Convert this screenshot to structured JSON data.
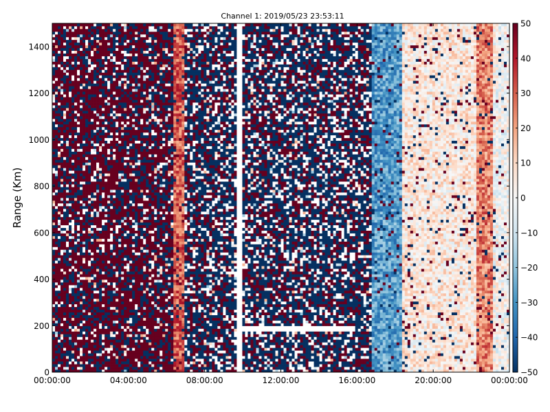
{
  "chart_data": {
    "type": "heatmap",
    "title": "Channel 1: 2019/05/23 23:53:11",
    "xlabel": "",
    "ylabel": "Range (Km)",
    "x_tick_labels": [
      "00:00:00",
      "04:00:00",
      "08:00:00",
      "12:00:00",
      "16:00:00",
      "20:00:00",
      "00:00:00"
    ],
    "x_tick_hours": [
      0,
      4,
      8,
      12,
      16,
      20,
      24
    ],
    "xlim_hours": [
      0,
      24
    ],
    "ylim": [
      0,
      1500
    ],
    "y_ticks": [
      0,
      200,
      400,
      600,
      800,
      1000,
      1200,
      1400
    ],
    "colorbar": {
      "min": -50,
      "max": 50,
      "ticks": [
        -50,
        -40,
        -30,
        -20,
        -10,
        0,
        10,
        20,
        30,
        40,
        50
      ],
      "colormap": "RdBu_r",
      "colors": [
        "#053061",
        "#2166ac",
        "#4393c3",
        "#92c5de",
        "#d1e5f0",
        "#f7f7f7",
        "#fddbc7",
        "#f4a582",
        "#d6604d",
        "#b2182b",
        "#67001f"
      ]
    },
    "grid": false,
    "time_regimes": [
      {
        "start_hour": 0,
        "end_hour": 6.3,
        "pattern": "noisy",
        "dominant_value": 50,
        "minority_value": -50,
        "blank_share": 0.08
      },
      {
        "start_hour": 6.3,
        "end_hour": 7.0,
        "pattern": "smooth",
        "dominant_value": 30
      },
      {
        "start_hour": 7.0,
        "end_hour": 16.7,
        "pattern": "noisy",
        "dominant_value": -50,
        "minority_value": 50,
        "blank_share": 0.18
      },
      {
        "start_hour": 16.7,
        "end_hour": 18.3,
        "pattern": "smooth",
        "dominant_value": -28
      },
      {
        "start_hour": 18.3,
        "end_hour": 22.3,
        "pattern": "smooth",
        "dominant_value": 5
      },
      {
        "start_hour": 22.3,
        "end_hour": 23.2,
        "pattern": "smooth",
        "dominant_value": 25
      },
      {
        "start_hour": 23.2,
        "end_hour": 24,
        "pattern": "smooth",
        "dominant_value": 0
      }
    ],
    "features": [
      {
        "kind": "white-band",
        "start_hour": 9.7,
        "end_hour": 10.0,
        "range_from": 0,
        "range_to": 1500
      },
      {
        "kind": "white-band",
        "start_hour": 10.0,
        "end_hour": 15.9,
        "range_from": 175,
        "range_to": 195
      }
    ]
  }
}
